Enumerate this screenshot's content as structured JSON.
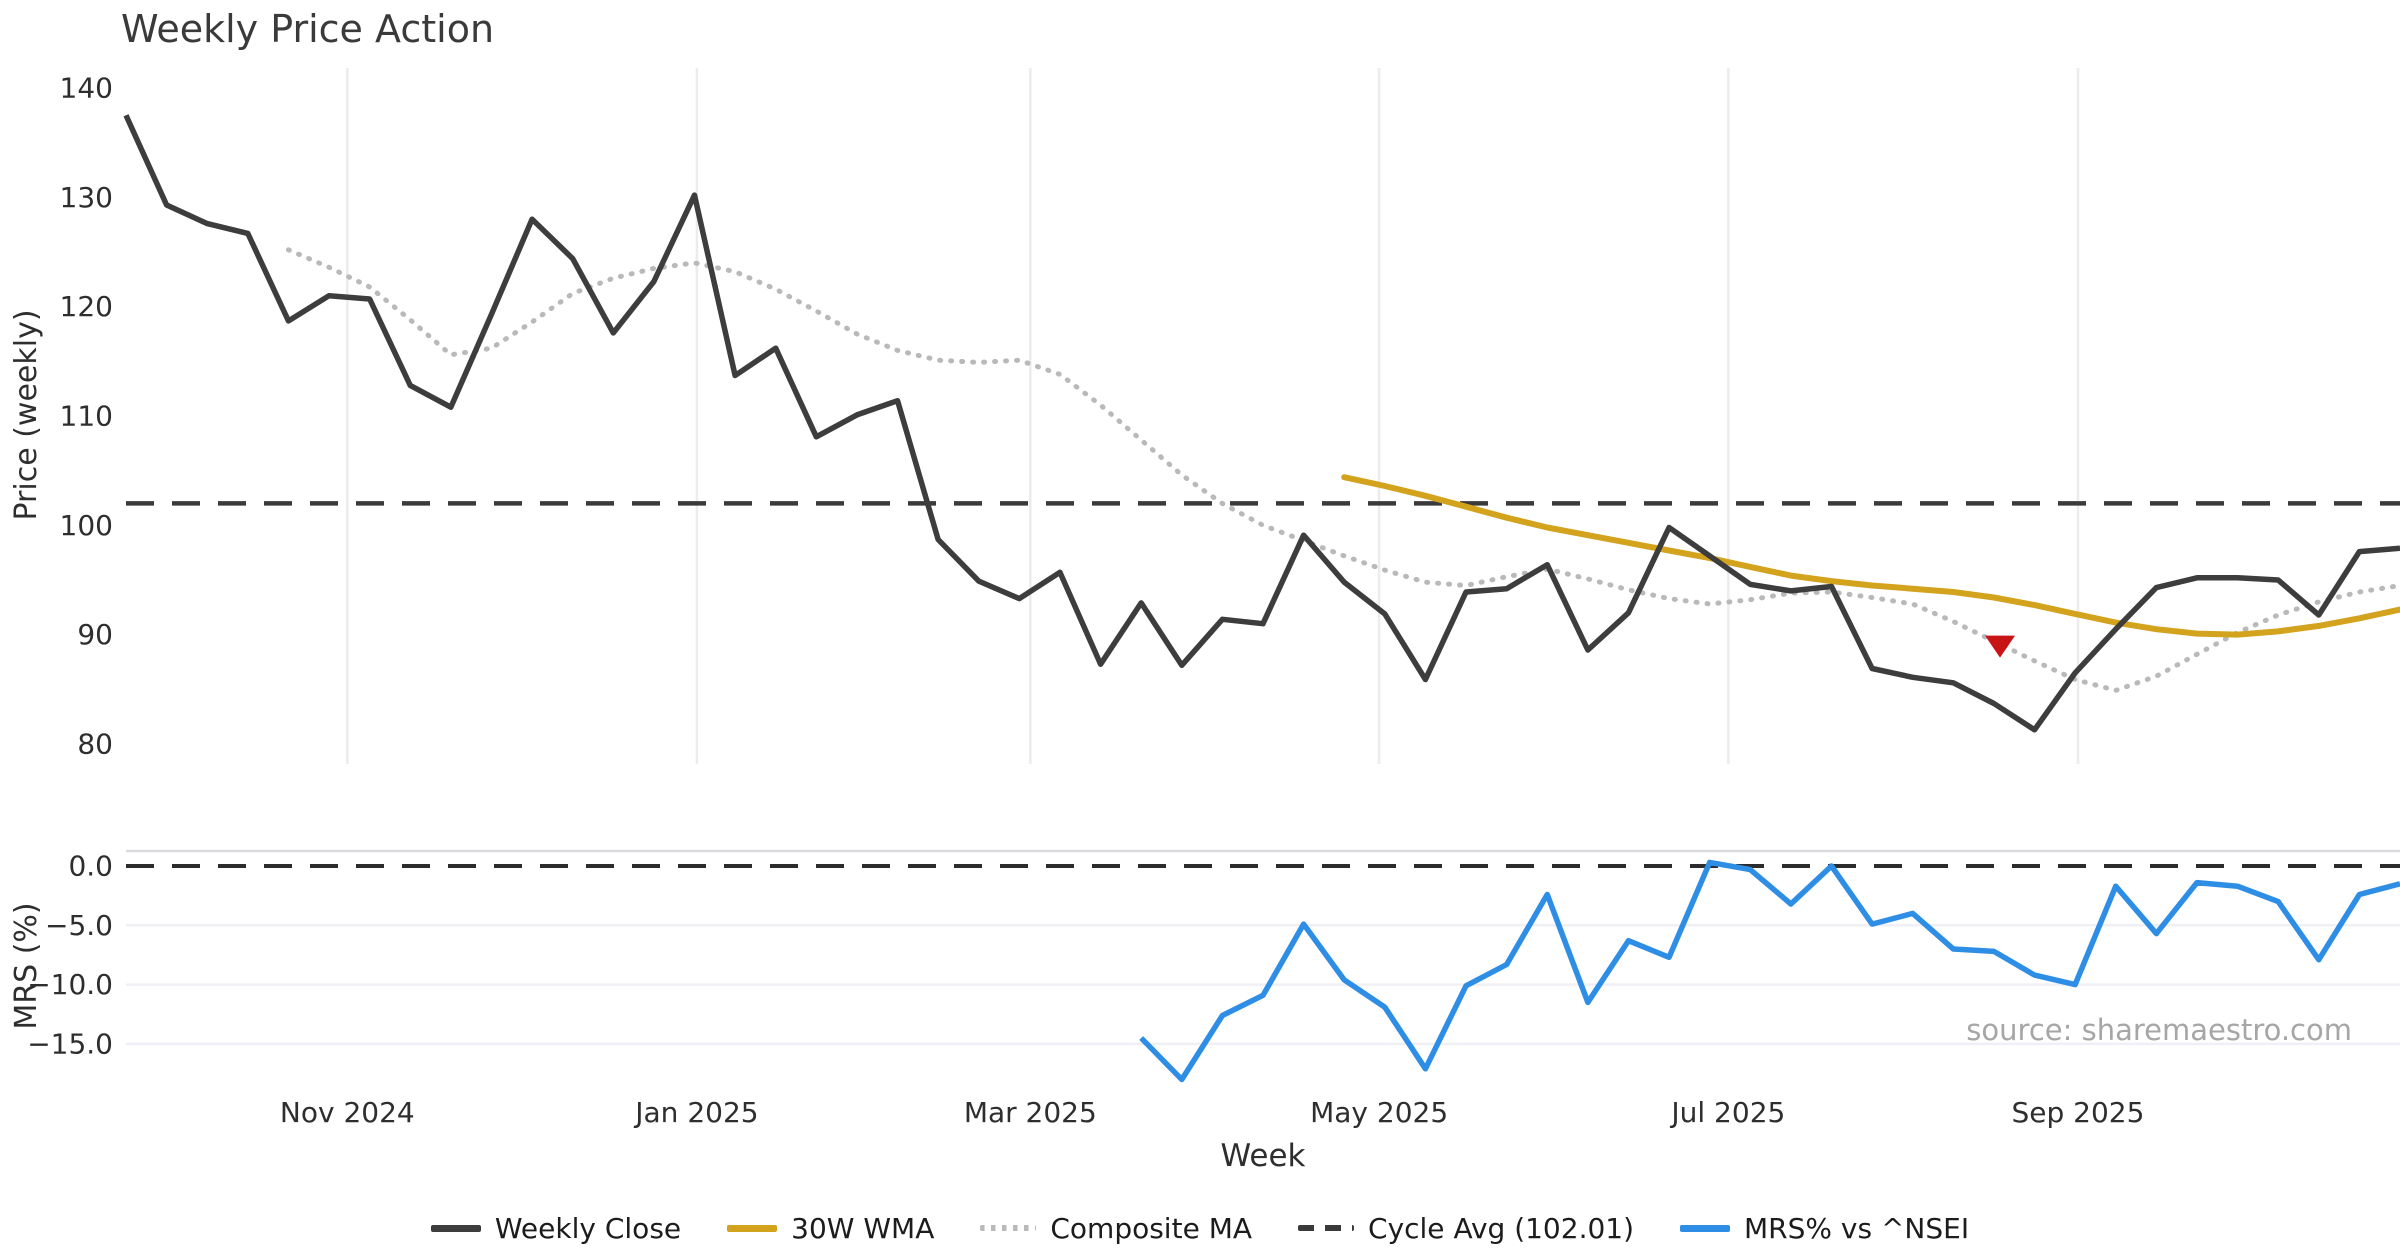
{
  "title": "Weekly Price Action",
  "source_note": "source: sharemaestro.com",
  "colors": {
    "background": "#ffffff",
    "weekly_close": "#3d3d3d",
    "wma_30": "#d3a31e",
    "composite_ma": "#b9b9b9",
    "cycle_avg": "#3a3a3a",
    "mrs": "#2e8ee5",
    "marker_red": "#c81414",
    "grid_vertical": "#ebebf0",
    "grid_horizontal": "#f0f0f4",
    "panel_spine": "#d9d9de",
    "tick_text": "#2e2e2e",
    "source_text": "#a6a6a6"
  },
  "axes": {
    "price_ylabel": "Price (weekly)",
    "mrs_ylabel": "MRS (%)",
    "xlabel": "Week",
    "price_ticks": [
      {
        "label": "140",
        "value": 140
      },
      {
        "label": "130",
        "value": 130
      },
      {
        "label": "120",
        "value": 120
      },
      {
        "label": "110",
        "value": 110
      },
      {
        "label": "100",
        "value": 100
      },
      {
        "label": "90",
        "value": 90
      },
      {
        "label": "80",
        "value": 80
      }
    ],
    "mrs_ticks": [
      {
        "label": "0.0",
        "value": 0
      },
      {
        "label": "−5.0",
        "value": -5
      },
      {
        "label": "−10.0",
        "value": -10
      },
      {
        "label": "−15.0",
        "value": -15
      }
    ],
    "x_ticks": [
      {
        "label": "Nov 2024",
        "week": 5.45
      },
      {
        "label": "Jan 2025",
        "week": 14.06
      },
      {
        "label": "Mar 2025",
        "week": 22.27
      },
      {
        "label": "May 2025",
        "week": 30.86
      },
      {
        "label": "Jul 2025",
        "week": 39.46
      },
      {
        "label": "Sep 2025",
        "week": 48.07
      }
    ]
  },
  "legend": [
    {
      "label": "Weekly Close",
      "type": "solid",
      "color": "#3d3d3d"
    },
    {
      "label": "30W WMA",
      "type": "solid",
      "color": "#d3a31e"
    },
    {
      "label": "Composite MA",
      "type": "dotted",
      "color": "#b9b9b9"
    },
    {
      "label": "Cycle Avg (102.01)",
      "type": "dashed",
      "color": "#3a3a3a"
    },
    {
      "label": "MRS% vs ^NSEI",
      "type": "solid",
      "color": "#2e8ee5"
    }
  ],
  "chart_data": {
    "type": "line",
    "title": "Weekly Price Action",
    "x_unit": "week_index",
    "n_weeks": 57,
    "grid": "vertical-months-top-panel, horizontal-bottom-panel",
    "legend_position": "bottom-center",
    "panels": [
      {
        "name": "price",
        "ylabel": "Price (weekly)",
        "ylim": [
          78,
          142
        ],
        "series": [
          {
            "name": "Weekly Close",
            "style": "solid",
            "color": "#3d3d3d",
            "start_week": 0,
            "values": [
              137.5,
              129.3,
              127.6,
              126.7,
              118.7,
              121.0,
              120.7,
              112.8,
              110.8,
              119.3,
              128.0,
              124.4,
              117.6,
              122.3,
              130.2,
              113.7,
              116.2,
              108.1,
              110.1,
              111.4,
              98.7,
              94.9,
              93.3,
              95.7,
              87.3,
              92.9,
              87.2,
              91.4,
              91.0,
              99.1,
              94.8,
              91.9,
              85.9,
              93.9,
              94.2,
              96.4,
              88.6,
              92.0,
              99.8,
              97.2,
              94.6,
              94.0,
              94.4,
              86.9,
              86.1,
              85.6,
              83.7,
              81.3,
              86.5,
              90.5,
              94.3,
              95.2,
              95.2,
              95.0,
              91.8,
              97.6,
              97.9
            ]
          },
          {
            "name": "30W WMA",
            "style": "solid",
            "color": "#d3a31e",
            "start_week": 30,
            "values": [
              104.4,
              103.6,
              102.7,
              101.7,
              100.7,
              99.8,
              99.1,
              98.4,
              97.7,
              97.0,
              96.2,
              95.4,
              94.9,
              94.5,
              94.2,
              93.9,
              93.4,
              92.7,
              91.9,
              91.1,
              90.5,
              90.1,
              90.0,
              90.3,
              90.8,
              91.5,
              92.3
            ]
          },
          {
            "name": "Composite MA",
            "style": "dotted",
            "color": "#b9b9b9",
            "start_week": 4,
            "values": [
              125.2,
              123.6,
              121.8,
              118.8,
              115.6,
              116.2,
              118.6,
              121.2,
              122.6,
              123.5,
              124.0,
              123.2,
              121.6,
              119.6,
              117.5,
              116.0,
              115.1,
              114.9,
              115.1,
              113.8,
              111.0,
              107.8,
              104.6,
              102.0,
              100.0,
              98.6,
              97.2,
              95.9,
              94.8,
              94.5,
              95.3,
              96.0,
              95.1,
              94.1,
              93.3,
              92.8,
              93.2,
              93.8,
              93.9,
              93.4,
              92.8,
              91.2,
              89.4,
              87.6,
              85.9,
              84.9,
              86.2,
              88.2,
              90.2,
              91.8,
              93.0,
              93.9,
              94.5
            ]
          },
          {
            "name": "Cycle Avg",
            "style": "dashed",
            "color": "#3a3a3a",
            "constant": 102.01
          }
        ],
        "markers": [
          {
            "shape": "triangle-down",
            "color": "#c81414",
            "week": 46.15,
            "price": 89.0
          }
        ]
      },
      {
        "name": "mrs",
        "ylabel": "MRS (%)",
        "ylim": [
          -18.5,
          1.3
        ],
        "series": [
          {
            "name": "MRS% vs ^NSEI",
            "style": "solid",
            "color": "#2e8ee5",
            "start_week": 25,
            "values": [
              -14.5,
              -18.0,
              -12.6,
              -10.9,
              -4.9,
              -9.6,
              -11.9,
              -17.1,
              -10.1,
              -8.3,
              -2.4,
              -11.5,
              -6.3,
              -7.7,
              0.3,
              -0.3,
              -3.2,
              0.0,
              -4.9,
              -4.0,
              -7.0,
              -7.2,
              -9.2,
              -10.0,
              -1.7,
              -5.7,
              -1.4,
              -1.7,
              -3.0,
              -7.9,
              -2.4,
              -1.5
            ]
          },
          {
            "name": "Zero line",
            "style": "dashed",
            "color": "#2c2c2c",
            "constant": 0.0
          }
        ]
      }
    ]
  }
}
